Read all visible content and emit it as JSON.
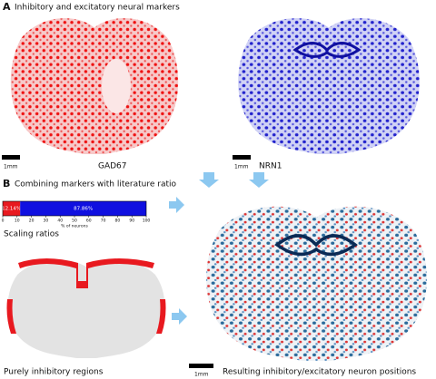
{
  "panel_a": {
    "label": "A",
    "title": "Inhibitory and excitatory neural markers",
    "left_caption": "GAD67",
    "right_caption": "NRN1",
    "left_scale": "1mm",
    "right_scale": "1mm"
  },
  "panel_b": {
    "label": "B",
    "title": "Combining markers with literature ratio",
    "ratio_bar": {
      "values": [
        12.14,
        87.86
      ],
      "value_labels": [
        "12.14%",
        "87.86%"
      ],
      "colors": [
        "#e8191f",
        "#1010e0"
      ],
      "xlim": [
        0,
        100
      ],
      "xticks": [
        0,
        10,
        20,
        30,
        40,
        50,
        60,
        70,
        80,
        90,
        100
      ],
      "xlabel": "% of neurons"
    },
    "ratio_caption": "Scaling ratios",
    "regions_caption": "Purely inhibitory regions",
    "result_scale": "1mm",
    "result_caption": "Resulting inhibitory/excitatory neuron positions"
  }
}
